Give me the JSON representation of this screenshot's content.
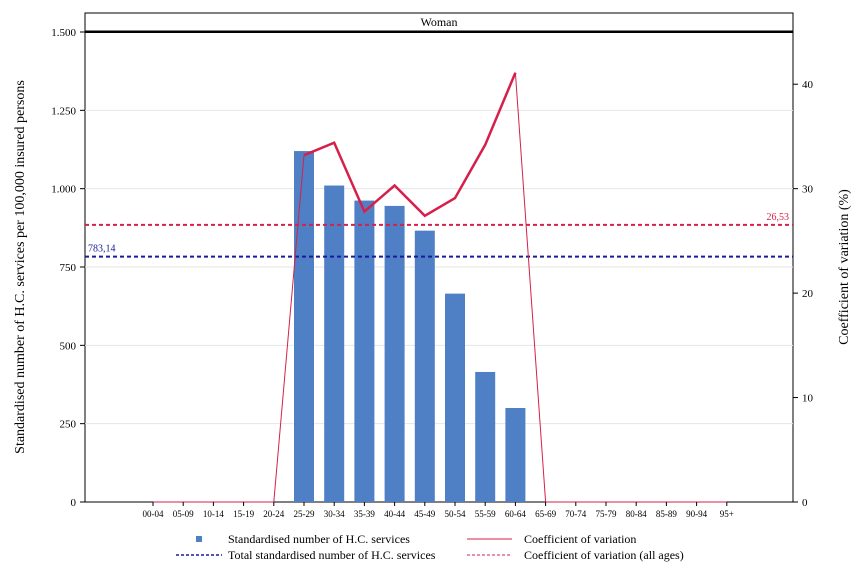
{
  "chart_data": {
    "type": "bar",
    "panel_title": "Woman",
    "categories": [
      "00-04",
      "05-09",
      "10-14",
      "15-19",
      "20-24",
      "25-29",
      "30-34",
      "35-39",
      "40-44",
      "45-49",
      "50-54",
      "55-59",
      "60-64",
      "65-69",
      "70-74",
      "75-79",
      "80-84",
      "85-89",
      "90-94",
      "95+"
    ],
    "bars": {
      "name": "Standardised number of H.C. services",
      "values": [
        0,
        0,
        0,
        0,
        0,
        1120,
        1010,
        962,
        945,
        866,
        665,
        415,
        300,
        0,
        0,
        0,
        0,
        0,
        0,
        0
      ],
      "color": "#4f7fc4"
    },
    "cv_line": {
      "name": "Coefficient of variation",
      "values": [
        0,
        0,
        0,
        0,
        0,
        33.2,
        34.4,
        27.8,
        30.3,
        27.4,
        29.1,
        34.2,
        41.1,
        0,
        0,
        0,
        0,
        0,
        0,
        0
      ],
      "color": "#d6204b"
    },
    "total_line": {
      "name": "Total standardised number of H.C. services",
      "value": 783.14,
      "label": "783,14",
      "color": "#1a1a9a"
    },
    "cv_all_line": {
      "name": "Coefficient of variation (all ages)",
      "value": 26.53,
      "label": "26,53",
      "color": "#d6204b"
    },
    "ylabel": "Standardised number of H.C. services per 100,000 insured persons",
    "y2label": "Coefficient of variation (%)",
    "ylim": [
      0,
      1500
    ],
    "y2lim": [
      0,
      45
    ],
    "yticks": [
      0,
      250,
      500,
      750,
      1000,
      1250,
      1500
    ],
    "ytick_labels": [
      "0",
      "250",
      "500",
      "750",
      "1.000",
      "1.250",
      "1.500"
    ],
    "y2ticks": [
      0,
      10,
      20,
      30,
      40
    ],
    "y2tick_labels": [
      "0",
      "10",
      "20",
      "30",
      "40"
    ],
    "grid": true,
    "legend_position": "bottom"
  }
}
